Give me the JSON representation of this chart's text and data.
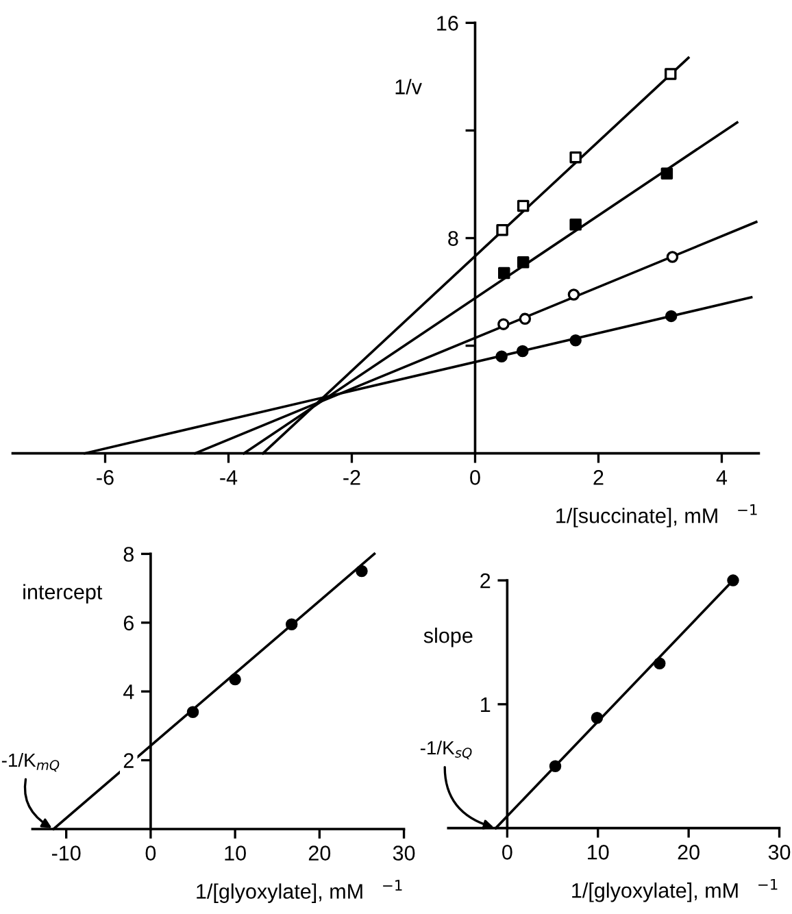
{
  "chart_data": [
    {
      "type": "scatter",
      "xlabel": "1/[succinate], mM   $^{−1}$",
      "ylabel": "1/v",
      "xlim": [
        -7.5,
        4.6
      ],
      "ylim": [
        0,
        16
      ],
      "xticks": [
        -6,
        -4,
        -2,
        0,
        2,
        4
      ],
      "yticks": [
        {
          "value": 4,
          "label": null
        },
        8,
        {
          "value": 12,
          "label": null
        },
        16
      ],
      "grid": false,
      "series": [
        {
          "type": "scatter",
          "marker": "square",
          "color": "#ffffff",
          "x": [
            0.44,
            0.78,
            1.63,
            3.17
          ],
          "values": [
            8.3,
            9.2,
            11.0,
            14.1
          ]
        },
        {
          "type": "scatter",
          "marker": "square",
          "color": "#000000",
          "x": [
            0.47,
            0.78,
            1.63,
            3.11
          ],
          "values": [
            6.7,
            7.1,
            8.5,
            10.4
          ]
        },
        {
          "type": "scatter",
          "marker": "circle",
          "color": "#ffffff",
          "x": [
            0.46,
            0.81,
            1.6,
            3.2
          ],
          "values": [
            4.8,
            5.0,
            5.9,
            7.3
          ]
        },
        {
          "type": "scatter",
          "marker": "circle",
          "color": "#000000",
          "x": [
            0.43,
            0.77,
            1.63,
            3.18
          ],
          "values": [
            3.6,
            3.8,
            4.2,
            5.1
          ]
        },
        {
          "type": "line",
          "color": "#000000",
          "x": [
            -3.44,
            3.46
          ],
          "values": [
            0,
            14.7
          ]
        },
        {
          "type": "line",
          "color": "#000000",
          "x": [
            -3.75,
            4.25
          ],
          "values": [
            0,
            12.3
          ]
        },
        {
          "type": "line",
          "color": "#000000",
          "x": [
            -4.54,
            4.56
          ],
          "values": [
            0,
            8.6
          ]
        },
        {
          "type": "line",
          "color": "#000000",
          "x": [
            -6.33,
            4.48
          ],
          "values": [
            0,
            5.8
          ]
        }
      ]
    },
    {
      "type": "scatter",
      "xlabel": "1/[glyoxylate], mM   $^{−1}$",
      "ylabel": "intercept",
      "xlim": [
        -14,
        30
      ],
      "ylim": [
        0,
        8
      ],
      "xticks": [
        -10,
        0,
        10,
        20,
        30
      ],
      "yticks": [
        2,
        4,
        6,
        8
      ],
      "grid": false,
      "annotations": [
        {
          "text": "-1/K$_{mQ}$",
          "x": -11.5,
          "y": 0
        }
      ],
      "series": [
        {
          "type": "scatter",
          "marker": "circle",
          "color": "#000000",
          "x": [
            5.0,
            10.0,
            16.7,
            25.0
          ],
          "values": [
            3.4,
            4.35,
            5.95,
            7.5
          ]
        },
        {
          "type": "line",
          "color": "#000000",
          "x": [
            -11.5,
            26.5
          ],
          "values": [
            0,
            8.0
          ]
        }
      ]
    },
    {
      "type": "scatter",
      "xlabel": "1/[glyoxylate], mM   $^{−1}$",
      "ylabel": "slope",
      "xlim": [
        -6.5,
        30
      ],
      "ylim": [
        0,
        2
      ],
      "xticks": [
        0,
        10,
        20,
        30
      ],
      "yticks": [
        1,
        2
      ],
      "grid": false,
      "annotations": [
        {
          "text": "-1/K$_{sQ}$",
          "x": -1.26,
          "y": 0
        }
      ],
      "series": [
        {
          "type": "scatter",
          "marker": "circle",
          "color": "#000000",
          "x": [
            5.3,
            9.9,
            16.8,
            24.9
          ],
          "values": [
            0.5,
            0.89,
            1.33,
            2.0
          ]
        },
        {
          "type": "line",
          "color": "#000000",
          "x": [
            -1.26,
            24.9
          ],
          "values": [
            0,
            2.0
          ]
        }
      ]
    }
  ]
}
